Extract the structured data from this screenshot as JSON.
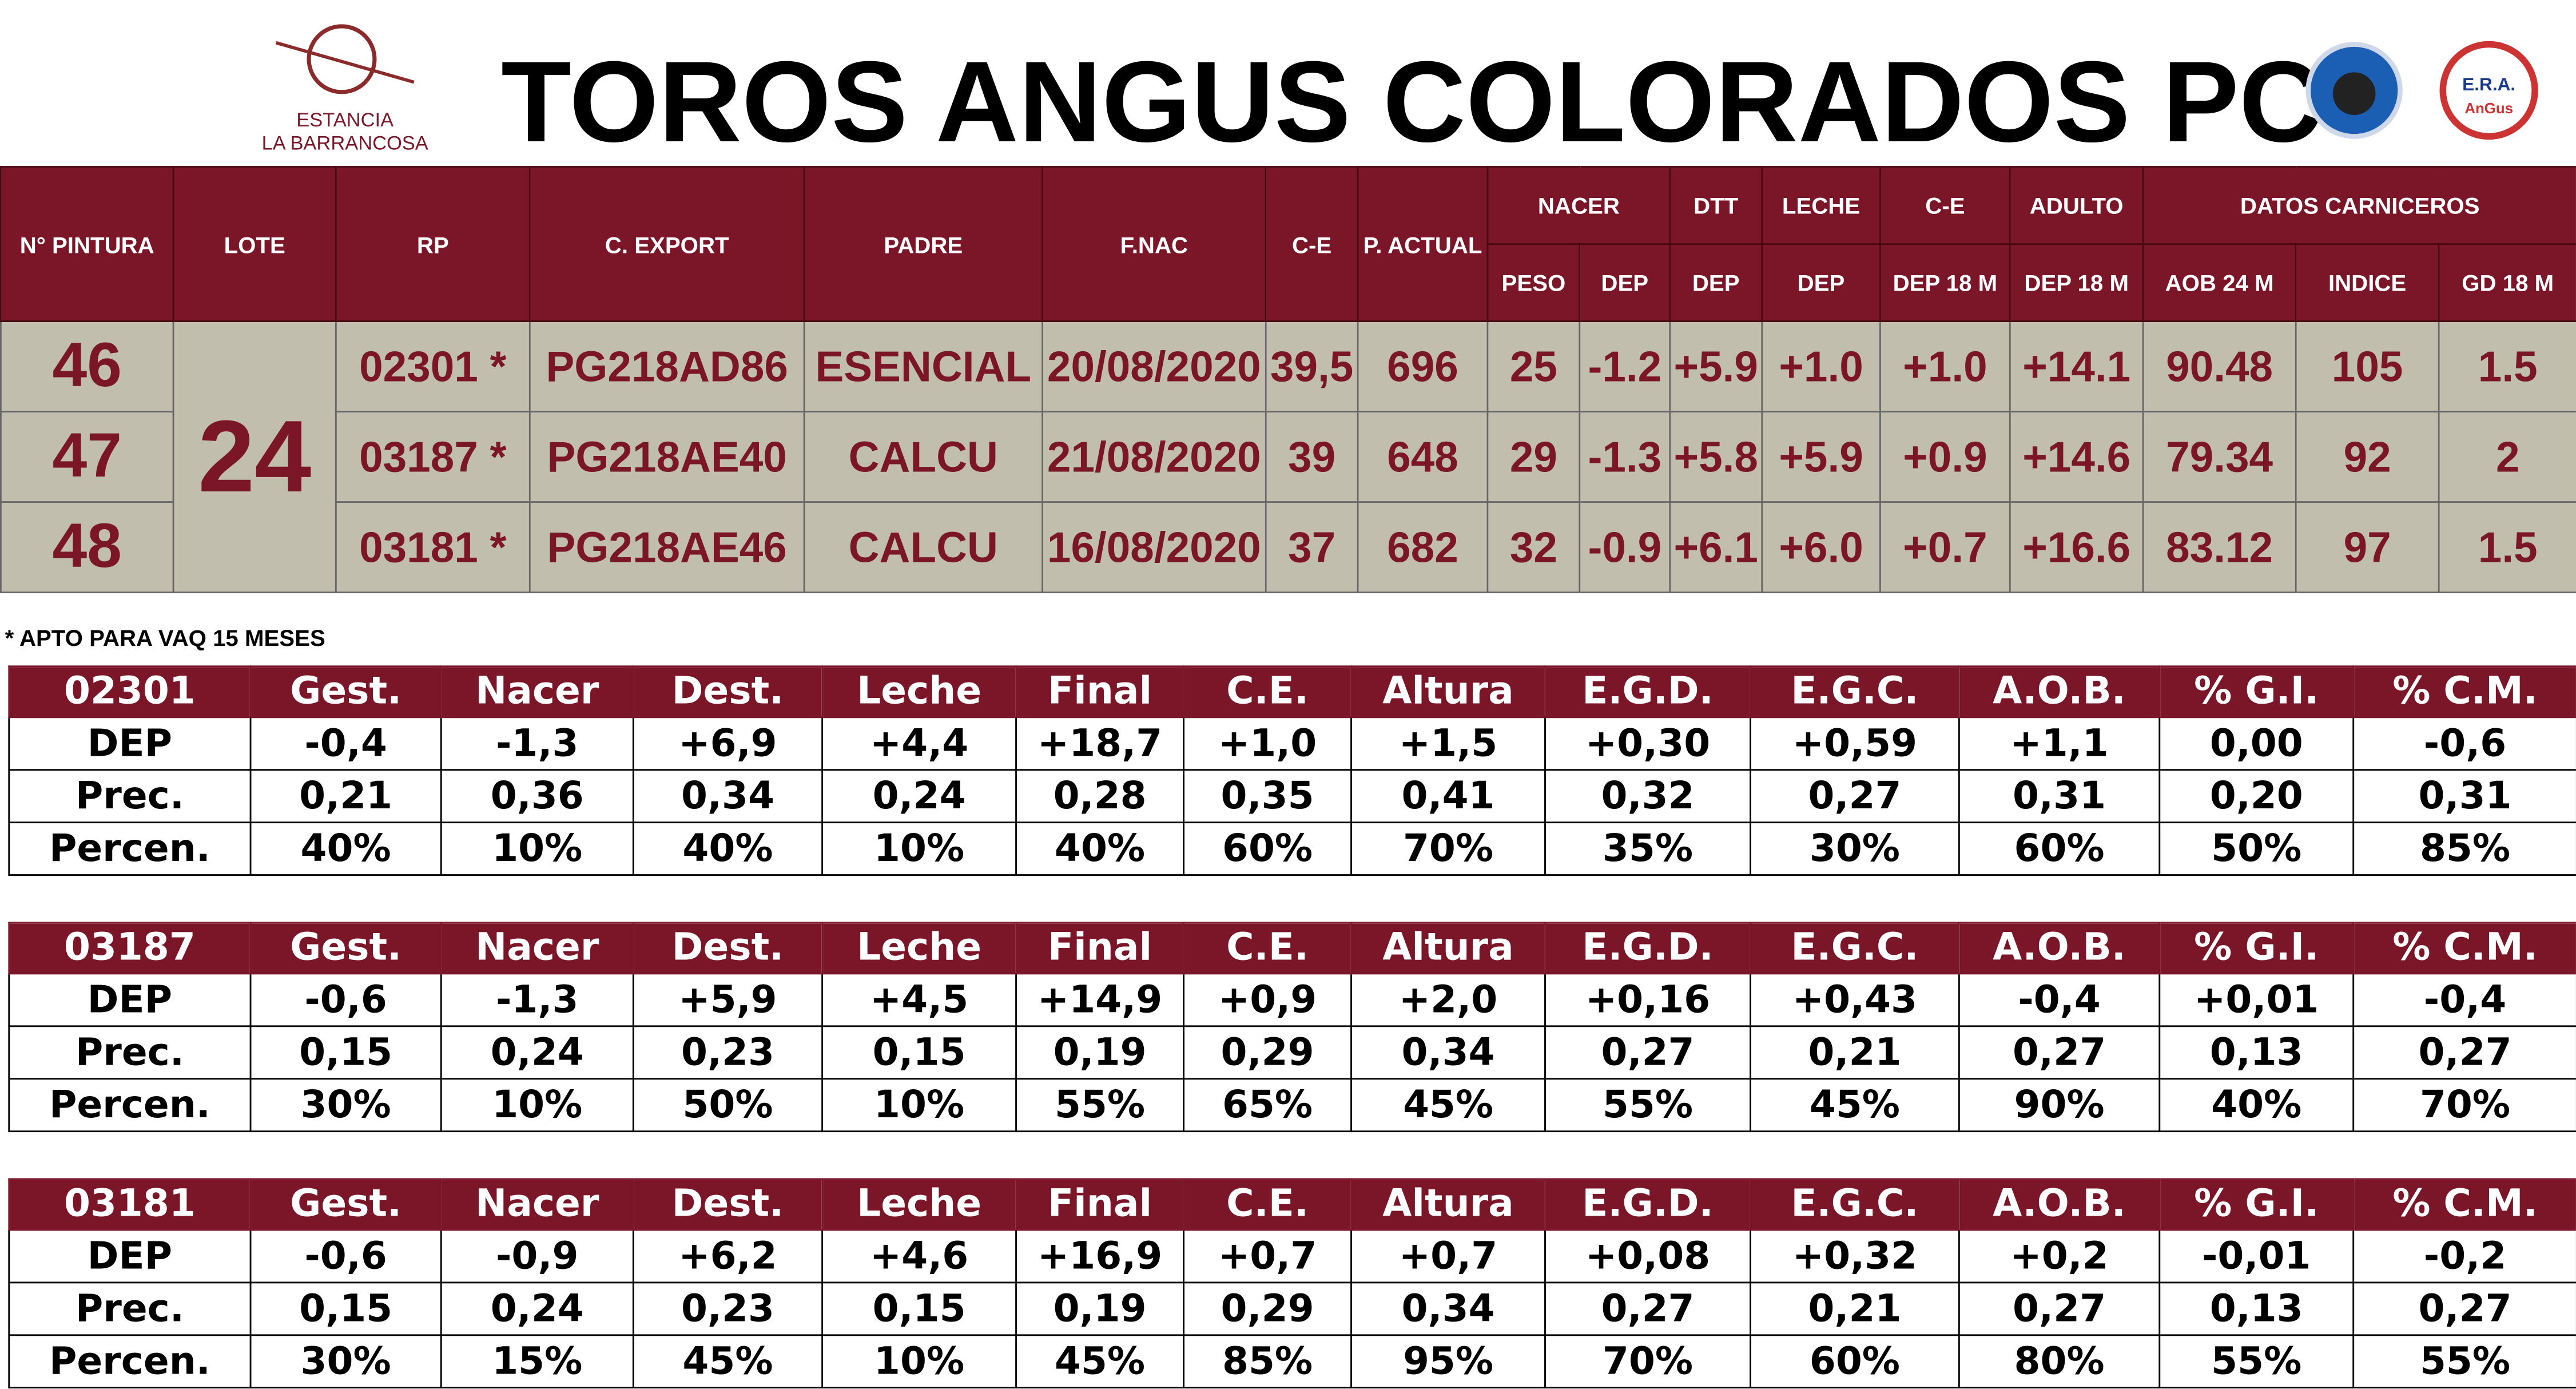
{
  "header": {
    "logo_left": [
      "ESTANCIA",
      "LA BARRANCOSA"
    ],
    "title": "TOROS ANGUS COLORADOS PC",
    "logo_right": [
      "E.R.A.",
      "AnGus"
    ]
  },
  "main_table": {
    "header_top": [
      "N° PINTURA",
      "LOTE",
      "RP",
      "C. EXPORT",
      "PADRE",
      "F.NAC",
      "C-E",
      "P. ACTUAL",
      "NACER",
      "DTT",
      "LECHE",
      "C-E",
      "ADULTO",
      "DATOS CARNICEROS"
    ],
    "header_sub": [
      "PESO",
      "DEP",
      "DEP",
      "DEP",
      "DEP 18 M",
      "DEP 18 M",
      "AOB 24 M",
      "INDICE",
      "GD  18 M"
    ],
    "lote": "24",
    "rows": [
      [
        "46",
        "02301 *",
        "PG218AD86",
        "ESENCIAL",
        "20/08/2020",
        "39,5",
        "696",
        "25",
        "-1.2",
        "+5.9",
        "+1.0",
        "+1.0",
        "+14.1",
        "90.48",
        "105",
        "1.5"
      ],
      [
        "47",
        "03187 *",
        "PG218AE40",
        "CALCU",
        "21/08/2020",
        "39",
        "648",
        "29",
        "-1.3",
        "+5.8",
        "+5.9",
        "+0.9",
        "+14.6",
        "79.34",
        "92",
        "2"
      ],
      [
        "48",
        "03181 *",
        "PG218AE46",
        "CALCU",
        "16/08/2020",
        "37",
        "682",
        "32",
        "-0.9",
        "+6.1",
        "+6.0",
        "+0.7",
        "+16.6",
        "83.12",
        "97",
        "1.5"
      ]
    ],
    "footnote": "* APTO PARA VAQ 15 MESES"
  },
  "dep_tables": [
    {
      "header": [
        "02301",
        "Gest.",
        "Nacer",
        "Dest.",
        "Leche",
        "Final",
        "C.E.",
        "Altura",
        "E.G.D.",
        "E.G.C.",
        "A.O.B.",
        "% G.I.",
        "% C.M."
      ],
      "rows": [
        [
          "DEP",
          "-0,4",
          "-1,3",
          "+6,9",
          "+4,4",
          "+18,7",
          "+1,0",
          "+1,5",
          "+0,30",
          "+0,59",
          "+1,1",
          "0,00",
          "-0,6"
        ],
        [
          "Prec.",
          "0,21",
          "0,36",
          "0,34",
          "0,24",
          "0,28",
          "0,35",
          "0,41",
          "0,32",
          "0,27",
          "0,31",
          "0,20",
          "0,31"
        ],
        [
          "Percen.",
          "40%",
          "10%",
          "40%",
          "10%",
          "40%",
          "60%",
          "70%",
          "35%",
          "30%",
          "60%",
          "50%",
          "85%"
        ]
      ]
    },
    {
      "header": [
        "03187",
        "Gest.",
        "Nacer",
        "Dest.",
        "Leche",
        "Final",
        "C.E.",
        "Altura",
        "E.G.D.",
        "E.G.C.",
        "A.O.B.",
        "% G.I.",
        "% C.M."
      ],
      "rows": [
        [
          "DEP",
          "-0,6",
          "-1,3",
          "+5,9",
          "+4,5",
          "+14,9",
          "+0,9",
          "+2,0",
          "+0,16",
          "+0,43",
          "-0,4",
          "+0,01",
          "-0,4"
        ],
        [
          "Prec.",
          "0,15",
          "0,24",
          "0,23",
          "0,15",
          "0,19",
          "0,29",
          "0,34",
          "0,27",
          "0,21",
          "0,27",
          "0,13",
          "0,27"
        ],
        [
          "Percen.",
          "30%",
          "10%",
          "50%",
          "10%",
          "55%",
          "65%",
          "45%",
          "55%",
          "45%",
          "90%",
          "40%",
          "70%"
        ]
      ]
    },
    {
      "header": [
        "03181",
        "Gest.",
        "Nacer",
        "Dest.",
        "Leche",
        "Final",
        "C.E.",
        "Altura",
        "E.G.D.",
        "E.G.C.",
        "A.O.B.",
        "% G.I.",
        "% C.M."
      ],
      "rows": [
        [
          "DEP",
          "-0,6",
          "-0,9",
          "+6,2",
          "+4,6",
          "+16,9",
          "+0,7",
          "+0,7",
          "+0,08",
          "+0,32",
          "+0,2",
          "-0,01",
          "-0,2"
        ],
        [
          "Prec.",
          "0,15",
          "0,24",
          "0,23",
          "0,15",
          "0,19",
          "0,29",
          "0,34",
          "0,27",
          "0,21",
          "0,27",
          "0,13",
          "0,27"
        ],
        [
          "Percen.",
          "30%",
          "15%",
          "45%",
          "10%",
          "45%",
          "85%",
          "95%",
          "70%",
          "60%",
          "80%",
          "55%",
          "55%"
        ]
      ]
    }
  ]
}
